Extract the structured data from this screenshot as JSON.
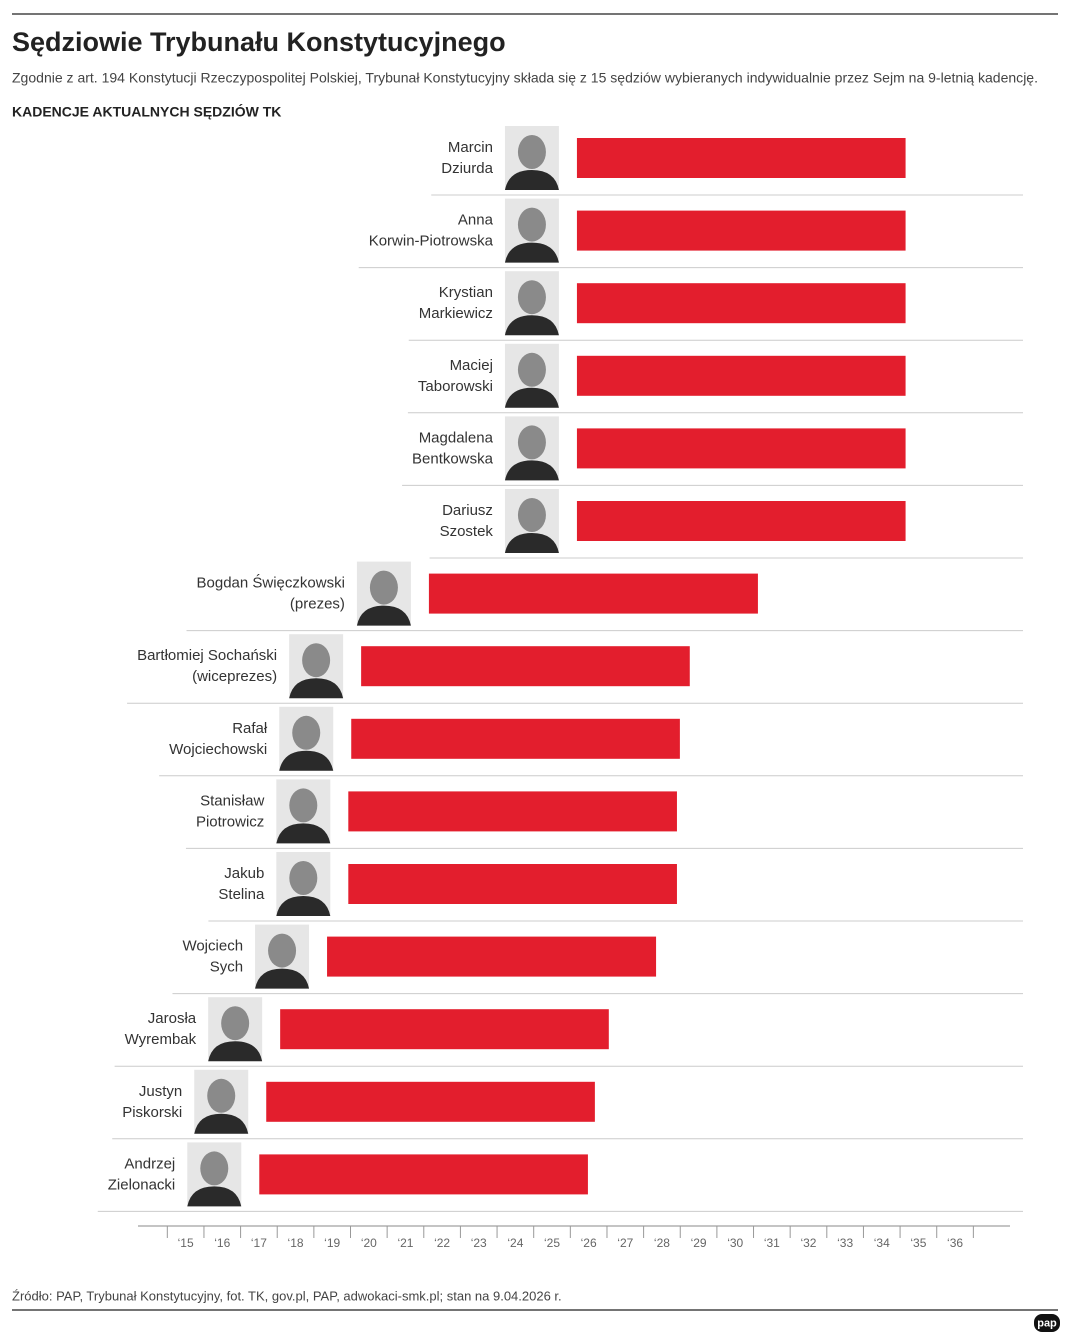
{
  "chart_data": {
    "type": "floating-bar",
    "title": "Sędziowie Trybunału Konstytucyjnego",
    "subtitle": "Zgodnie z art. 194 Konstytucji Rzeczypospolitej Polskiej, Trybunał Konstytucyjny składa się z 15 sędziów wybieranych indywidualnie przez Sejm na 9-letnią kadencję.",
    "heading": "KADENCJE AKTUALNYCH SĘDZIÓW TK",
    "source": "Źródło: PAP, Trybunał Konstytucyjny, fot. TK, gov.pl, PAP, adwokaci-smk.pl; stan na 9.04.2026 r.",
    "logo": "pap",
    "color": "#e31e2d",
    "categories": [
      "Marcin Dziurda",
      "Anna Korwin-Piotrowska",
      "Krystian Markiewicz",
      "Maciej Taborowski",
      "Magdalena Bentkowska",
      "Dariusz Szostek",
      "Bogdan Święczkowski (prezes)",
      "Bartłomiej Sochański (wiceprezes)",
      "Rafał Wojciechowski",
      "Stanisław Piotrowicz",
      "Jakub Stelina",
      "Wojciech Sych",
      "Jarosła Wyrembak",
      "Justyn Piskorski",
      "Andrzej Zielonacki"
    ],
    "starts": [
      2026.18,
      2026.18,
      2026.18,
      2026.18,
      2026.18,
      2026.18,
      2022.14,
      2020.29,
      2020.02,
      2019.94,
      2019.94,
      2019.36,
      2018.08,
      2017.7,
      2017.51
    ],
    "ends": [
      2035.15,
      2035.15,
      2035.15,
      2035.15,
      2035.15,
      2035.15,
      2031.12,
      2029.26,
      2028.99,
      2028.91,
      2028.91,
      2028.34,
      2027.05,
      2026.67,
      2026.48
    ],
    "xlim": [
      2014.2,
      2038
    ],
    "xticks": [
      {
        "value": 2015.5,
        "label": "‘15"
      },
      {
        "value": 2016.5,
        "label": "‘16"
      },
      {
        "value": 2017.5,
        "label": "‘17"
      },
      {
        "value": 2018.5,
        "label": "‘18"
      },
      {
        "value": 2019.5,
        "label": "‘19"
      },
      {
        "value": 2020.5,
        "label": "‘20"
      },
      {
        "value": 2021.5,
        "label": "‘21"
      },
      {
        "value": 2022.5,
        "label": "‘22"
      },
      {
        "value": 2023.5,
        "label": "‘23"
      },
      {
        "value": 2024.5,
        "label": "‘24"
      },
      {
        "value": 2025.5,
        "label": "‘25"
      },
      {
        "value": 2026.5,
        "label": "‘26"
      },
      {
        "value": 2027.5,
        "label": "‘27"
      },
      {
        "value": 2028.5,
        "label": "‘28"
      },
      {
        "value": 2029.5,
        "label": "‘29"
      },
      {
        "value": 2030.5,
        "label": "‘30"
      },
      {
        "value": 2031.5,
        "label": "‘31"
      },
      {
        "value": 2032.5,
        "label": "‘32"
      },
      {
        "value": 2033.5,
        "label": "‘33"
      },
      {
        "value": 2034.5,
        "label": "‘34"
      },
      {
        "value": 2035.5,
        "label": "‘35"
      },
      {
        "value": 2036.5,
        "label": "‘36"
      }
    ]
  }
}
